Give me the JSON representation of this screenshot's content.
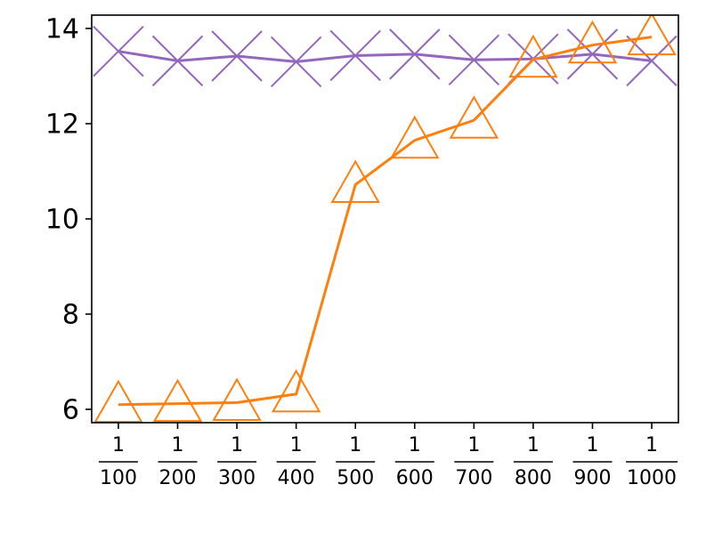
{
  "chart_data": {
    "type": "line",
    "categories": [
      {
        "numerator": "1",
        "denominator": "100"
      },
      {
        "numerator": "1",
        "denominator": "200"
      },
      {
        "numerator": "1",
        "denominator": "300"
      },
      {
        "numerator": "1",
        "denominator": "400"
      },
      {
        "numerator": "1",
        "denominator": "500"
      },
      {
        "numerator": "1",
        "denominator": "600"
      },
      {
        "numerator": "1",
        "denominator": "700"
      },
      {
        "numerator": "1",
        "denominator": "800"
      },
      {
        "numerator": "1",
        "denominator": "900"
      },
      {
        "numerator": "1",
        "denominator": "1000"
      }
    ],
    "series": [
      {
        "color": "#9467bd",
        "marker": "x",
        "values": [
          13.52,
          13.32,
          13.42,
          13.3,
          13.43,
          13.46,
          13.34,
          13.36,
          13.46,
          13.32
        ]
      },
      {
        "color": "#ff7f0e",
        "marker": "triangle",
        "values": [
          6.1,
          6.12,
          6.14,
          6.32,
          10.72,
          11.65,
          12.07,
          13.35,
          13.65,
          13.82
        ]
      }
    ],
    "ylim": [
      5.72,
      14.28
    ],
    "yticks": [
      6,
      8,
      10,
      12,
      14
    ]
  }
}
